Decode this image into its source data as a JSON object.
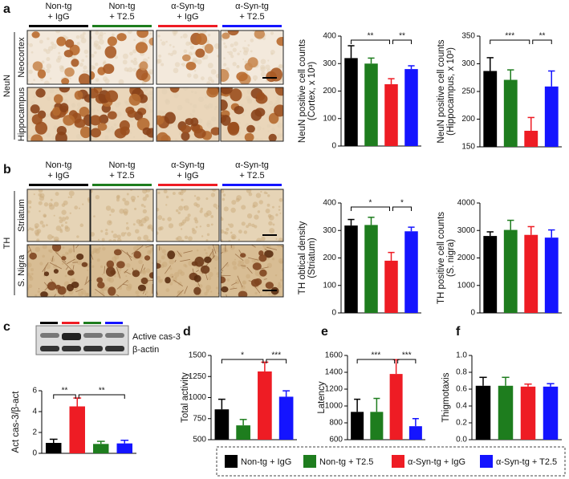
{
  "panel_labels": [
    "a",
    "b",
    "c",
    "d",
    "e",
    "f"
  ],
  "micrographs": {
    "columns": [
      [
        "Non-tg",
        "+ IgG"
      ],
      [
        "Non-tg",
        "+ T2.5"
      ],
      [
        "α-Syn-tg",
        "+ IgG"
      ],
      [
        "α-Syn-tg",
        "+ T2.5"
      ]
    ],
    "column_colors": [
      "#000000",
      "#1e7d1e",
      "#ee1c24",
      "#1414ff"
    ],
    "a": {
      "marker": "NeuN",
      "rows": [
        "Neocortex",
        "Hippocampus"
      ]
    },
    "b": {
      "marker": "TH",
      "rows": [
        "Striatum",
        "S. Nigra"
      ]
    }
  },
  "blot": {
    "lane_colors": [
      "#000000",
      "#ee1c24",
      "#1e7d1e",
      "#1414ff"
    ],
    "bands": [
      "Active cas-3",
      "β-actin"
    ]
  },
  "legend": [
    {
      "name": "Non-tg + IgG",
      "color": "#000000"
    },
    {
      "name": "Non-tg + T2.5",
      "color": "#1e7d1e"
    },
    {
      "name": "α-Syn-tg + IgG",
      "color": "#ee1c24"
    },
    {
      "name": "α-Syn-tg + T2.5",
      "color": "#1414ff"
    }
  ],
  "chart_data": [
    {
      "type": "bar",
      "ylabel": [
        "NeuN positive cell counts",
        "(Cortex, x 10³)"
      ],
      "ylim": [
        0,
        400
      ],
      "yticks": [
        0,
        100,
        200,
        300,
        400
      ],
      "values": [
        320,
        300,
        225,
        280
      ],
      "errors": [
        45,
        20,
        20,
        12
      ],
      "colors": [
        "#000000",
        "#1e7d1e",
        "#ee1c24",
        "#1414ff"
      ],
      "significance": [
        {
          "bars": [
            0,
            2
          ],
          "label": "**"
        },
        {
          "bars": [
            2,
            3
          ],
          "label": "**"
        }
      ]
    },
    {
      "type": "bar",
      "ylabel": [
        "NeuN positive cell counts",
        "(Hippocampus, x 10³)"
      ],
      "ylim": [
        150,
        350
      ],
      "yticks": [
        150,
        200,
        250,
        300,
        350
      ],
      "values": [
        287,
        271,
        179,
        259
      ],
      "errors": [
        24,
        18,
        24,
        28
      ],
      "colors": [
        "#000000",
        "#1e7d1e",
        "#ee1c24",
        "#1414ff"
      ],
      "significance": [
        {
          "bars": [
            0,
            2
          ],
          "label": "***"
        },
        {
          "bars": [
            2,
            3
          ],
          "label": "**"
        }
      ]
    },
    {
      "type": "bar",
      "ylabel": [
        "TH obtical density",
        "(Striatum)"
      ],
      "ylim": [
        0,
        400
      ],
      "yticks": [
        0,
        100,
        200,
        300,
        400
      ],
      "values": [
        318,
        320,
        190,
        297
      ],
      "errors": [
        22,
        28,
        30,
        15
      ],
      "colors": [
        "#000000",
        "#1e7d1e",
        "#ee1c24",
        "#1414ff"
      ],
      "significance": [
        {
          "bars": [
            0,
            2
          ],
          "label": "*"
        },
        {
          "bars": [
            2,
            3
          ],
          "label": "*"
        }
      ]
    },
    {
      "type": "bar",
      "ylabel": [
        "TH positive cell counts",
        "(S. nigra)"
      ],
      "ylim": [
        0,
        4000
      ],
      "yticks": [
        0,
        1000,
        2000,
        3000,
        4000
      ],
      "values": [
        2800,
        3020,
        2840,
        2740
      ],
      "errors": [
        150,
        350,
        300,
        280
      ],
      "colors": [
        "#000000",
        "#1e7d1e",
        "#ee1c24",
        "#1414ff"
      ],
      "significance": []
    },
    {
      "type": "bar",
      "ylabel": [
        "Act cas-3/β-act"
      ],
      "ylim": [
        0,
        6
      ],
      "yticks": [
        0,
        2,
        4,
        6
      ],
      "values": [
        1.0,
        4.5,
        0.9,
        0.95
      ],
      "errors": [
        0.35,
        0.8,
        0.25,
        0.3
      ],
      "colors": [
        "#000000",
        "#ee1c24",
        "#1e7d1e",
        "#1414ff"
      ],
      "significance": [
        {
          "bars": [
            0,
            1
          ],
          "label": "**"
        },
        {
          "bars": [
            1,
            3
          ],
          "label": "**"
        }
      ]
    },
    {
      "type": "bar",
      "ylabel": [
        "Total activity"
      ],
      "ylim": [
        500,
        1500
      ],
      "yticks": [
        500,
        750,
        1000,
        1250,
        1500
      ],
      "values": [
        860,
        670,
        1310,
        1010
      ],
      "errors": [
        120,
        70,
        110,
        70
      ],
      "colors": [
        "#000000",
        "#1e7d1e",
        "#ee1c24",
        "#1414ff"
      ],
      "significance": [
        {
          "bars": [
            0,
            2
          ],
          "label": "*"
        },
        {
          "bars": [
            2,
            3
          ],
          "label": "***"
        }
      ]
    },
    {
      "type": "bar",
      "ylabel": [
        "Latency"
      ],
      "ylim": [
        600,
        1600
      ],
      "yticks": [
        600,
        800,
        1000,
        1200,
        1400,
        1600
      ],
      "values": [
        930,
        930,
        1380,
        760
      ],
      "errors": [
        150,
        160,
        170,
        90
      ],
      "colors": [
        "#000000",
        "#1e7d1e",
        "#ee1c24",
        "#1414ff"
      ],
      "significance": [
        {
          "bars": [
            0,
            2
          ],
          "label": "***"
        },
        {
          "bars": [
            2,
            3
          ],
          "label": "***"
        }
      ]
    },
    {
      "type": "bar",
      "ylabel": [
        "Thigmotaxis"
      ],
      "ylim": [
        0,
        1.0
      ],
      "yticks": [
        {
          "value": 0,
          "label": "0.0"
        },
        0.2,
        0.4,
        0.6,
        0.8,
        {
          "value": 1.0,
          "label": "1.0"
        }
      ],
      "values": [
        0.64,
        0.64,
        0.63,
        0.63
      ],
      "errors": [
        0.1,
        0.1,
        0.03,
        0.035
      ],
      "colors": [
        "#000000",
        "#1e7d1e",
        "#ee1c24",
        "#1414ff"
      ],
      "significance": []
    }
  ]
}
